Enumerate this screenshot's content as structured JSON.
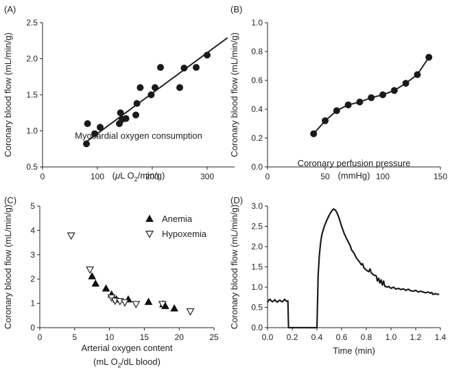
{
  "chart_data": [
    {
      "panel": "(A)",
      "type": "scatter",
      "xlabel": "Myocardial oxygen consumption",
      "xlabel_line2": {
        "pre": "(",
        "mu": "μ",
        "mid": "L O",
        "sub": "2",
        "post": "/min/g)"
      },
      "ylabel": "Coronary blood flow (mL/min/g)",
      "xlim": [
        0,
        350
      ],
      "ylim": [
        0.5,
        2.5
      ],
      "xticks": [
        "0",
        "100",
        "200",
        "300"
      ],
      "yticks": [
        "0.5",
        "1.0",
        "1.5",
        "2.0",
        "2.5"
      ],
      "points": [
        {
          "x": 80,
          "y": 0.82
        },
        {
          "x": 82,
          "y": 1.1
        },
        {
          "x": 95,
          "y": 0.96
        },
        {
          "x": 105,
          "y": 1.05
        },
        {
          "x": 140,
          "y": 1.1
        },
        {
          "x": 142,
          "y": 1.25
        },
        {
          "x": 145,
          "y": 1.16
        },
        {
          "x": 152,
          "y": 1.17
        },
        {
          "x": 170,
          "y": 1.22
        },
        {
          "x": 172,
          "y": 1.38
        },
        {
          "x": 178,
          "y": 1.6
        },
        {
          "x": 198,
          "y": 1.5
        },
        {
          "x": 205,
          "y": 1.6
        },
        {
          "x": 215,
          "y": 1.88
        },
        {
          "x": 250,
          "y": 1.6
        },
        {
          "x": 258,
          "y": 1.87
        },
        {
          "x": 280,
          "y": 1.88
        },
        {
          "x": 300,
          "y": 2.05
        }
      ],
      "fit_line": [
        {
          "x": 80,
          "y": 0.85
        },
        {
          "x": 337,
          "y": 2.29
        }
      ]
    },
    {
      "panel": "(B)",
      "type": "line",
      "xlabel": "Coronary perfusion pressure",
      "xlabel_line2": "(mmHg)",
      "ylabel": "Coronary blood flow (mL/min/g)",
      "xlim": [
        0,
        150
      ],
      "ylim": [
        0,
        1.0
      ],
      "xticks": [
        "0",
        "50",
        "100",
        "150"
      ],
      "yticks": [
        "0.0",
        "0.2",
        "0.4",
        "0.6",
        "0.8",
        "1.0"
      ],
      "points": [
        {
          "x": 40,
          "y": 0.23
        },
        {
          "x": 50,
          "y": 0.32
        },
        {
          "x": 60,
          "y": 0.39
        },
        {
          "x": 70,
          "y": 0.43
        },
        {
          "x": 80,
          "y": 0.45
        },
        {
          "x": 90,
          "y": 0.48
        },
        {
          "x": 100,
          "y": 0.5
        },
        {
          "x": 110,
          "y": 0.53
        },
        {
          "x": 120,
          "y": 0.58
        },
        {
          "x": 130,
          "y": 0.64
        },
        {
          "x": 140,
          "y": 0.76
        }
      ]
    },
    {
      "panel": "(C)",
      "type": "scatter",
      "xlabel": "Arterial oxygen content",
      "xlabel_line2": {
        "pre": "(mL O",
        "sub": "2",
        "post": "/dL blood)"
      },
      "ylabel": "Coronary blood flow (mL/min/g)",
      "xlim": [
        0,
        25
      ],
      "ylim": [
        0,
        5
      ],
      "xticks": [
        "0",
        "5",
        "10",
        "15",
        "20",
        "25"
      ],
      "yticks": [
        "0",
        "1",
        "2",
        "3",
        "4",
        "5"
      ],
      "legend": {
        "position": "top-right",
        "entries": [
          "Anemia",
          "Hypoxemia"
        ]
      },
      "series": [
        {
          "name": "Anemia",
          "marker": "filled-triangle",
          "points": [
            {
              "x": 7.5,
              "y": 2.1
            },
            {
              "x": 8,
              "y": 1.8
            },
            {
              "x": 9.5,
              "y": 1.6
            },
            {
              "x": 10.3,
              "y": 1.35
            },
            {
              "x": 11,
              "y": 1.15
            },
            {
              "x": 12.7,
              "y": 1.15
            },
            {
              "x": 15.6,
              "y": 1.05
            },
            {
              "x": 17.7,
              "y": 0.95
            },
            {
              "x": 18,
              "y": 0.88
            },
            {
              "x": 19.3,
              "y": 0.78
            }
          ]
        },
        {
          "name": "Hypoxemia",
          "marker": "open-triangle-down",
          "points": [
            {
              "x": 4.5,
              "y": 3.8
            },
            {
              "x": 7.2,
              "y": 2.4
            },
            {
              "x": 10.3,
              "y": 1.25
            },
            {
              "x": 10.8,
              "y": 1.12
            },
            {
              "x": 11.5,
              "y": 1.1
            },
            {
              "x": 12.2,
              "y": 1.05
            },
            {
              "x": 13.8,
              "y": 0.98
            },
            {
              "x": 17.6,
              "y": 0.98
            },
            {
              "x": 21.6,
              "y": 0.68
            }
          ]
        }
      ]
    },
    {
      "panel": "(D)",
      "type": "line",
      "xlabel": "Time (min)",
      "ylabel": "Coronary blood flow (mL/min/g)",
      "xlim": [
        0,
        1.4
      ],
      "ylim": [
        0,
        3.0
      ],
      "xticks": [
        "0.0",
        "0.2",
        "0.4",
        "0.6",
        "0.8",
        "1.0",
        "1.2",
        "1.4"
      ],
      "yticks": [
        "0.0",
        "0.5",
        "1.0",
        "1.5",
        "2.0",
        "2.5",
        "3.0"
      ],
      "trace": [
        {
          "x": 0.0,
          "y": 0.62
        },
        {
          "x": 0.01,
          "y": 0.68
        },
        {
          "x": 0.02,
          "y": 0.7
        },
        {
          "x": 0.03,
          "y": 0.66
        },
        {
          "x": 0.04,
          "y": 0.64
        },
        {
          "x": 0.05,
          "y": 0.66
        },
        {
          "x": 0.06,
          "y": 0.69
        },
        {
          "x": 0.07,
          "y": 0.65
        },
        {
          "x": 0.08,
          "y": 0.63
        },
        {
          "x": 0.09,
          "y": 0.66
        },
        {
          "x": 0.1,
          "y": 0.68
        },
        {
          "x": 0.11,
          "y": 0.65
        },
        {
          "x": 0.12,
          "y": 0.64
        },
        {
          "x": 0.13,
          "y": 0.67
        },
        {
          "x": 0.14,
          "y": 0.7
        },
        {
          "x": 0.15,
          "y": 0.66
        },
        {
          "x": 0.16,
          "y": 0.65
        },
        {
          "x": 0.165,
          "y": 0.66
        },
        {
          "x": 0.17,
          "y": 0.0
        },
        {
          "x": 0.25,
          "y": 0.0
        },
        {
          "x": 0.35,
          "y": 0.0
        },
        {
          "x": 0.4,
          "y": 0.0
        },
        {
          "x": 0.405,
          "y": 0.6
        },
        {
          "x": 0.41,
          "y": 1.3
        },
        {
          "x": 0.42,
          "y": 1.8
        },
        {
          "x": 0.43,
          "y": 2.1
        },
        {
          "x": 0.44,
          "y": 2.3
        },
        {
          "x": 0.46,
          "y": 2.5
        },
        {
          "x": 0.48,
          "y": 2.65
        },
        {
          "x": 0.5,
          "y": 2.78
        },
        {
          "x": 0.52,
          "y": 2.88
        },
        {
          "x": 0.535,
          "y": 2.93
        },
        {
          "x": 0.55,
          "y": 2.9
        },
        {
          "x": 0.56,
          "y": 2.85
        },
        {
          "x": 0.57,
          "y": 2.78
        },
        {
          "x": 0.58,
          "y": 2.7
        },
        {
          "x": 0.59,
          "y": 2.6
        },
        {
          "x": 0.6,
          "y": 2.5
        },
        {
          "x": 0.62,
          "y": 2.33
        },
        {
          "x": 0.64,
          "y": 2.2
        },
        {
          "x": 0.66,
          "y": 2.08
        },
        {
          "x": 0.67,
          "y": 2.02
        },
        {
          "x": 0.68,
          "y": 1.92
        },
        {
          "x": 0.7,
          "y": 1.84
        },
        {
          "x": 0.72,
          "y": 1.72
        },
        {
          "x": 0.73,
          "y": 1.68
        },
        {
          "x": 0.75,
          "y": 1.6
        },
        {
          "x": 0.76,
          "y": 1.55
        },
        {
          "x": 0.77,
          "y": 1.58
        },
        {
          "x": 0.78,
          "y": 1.48
        },
        {
          "x": 0.8,
          "y": 1.42
        },
        {
          "x": 0.82,
          "y": 1.38
        },
        {
          "x": 0.83,
          "y": 1.45
        },
        {
          "x": 0.84,
          "y": 1.35
        },
        {
          "x": 0.86,
          "y": 1.3
        },
        {
          "x": 0.88,
          "y": 1.28
        },
        {
          "x": 0.89,
          "y": 1.15
        },
        {
          "x": 0.9,
          "y": 1.22
        },
        {
          "x": 0.91,
          "y": 1.1
        },
        {
          "x": 0.92,
          "y": 1.18
        },
        {
          "x": 0.93,
          "y": 1.05
        },
        {
          "x": 0.94,
          "y": 1.15
        },
        {
          "x": 0.95,
          "y": 1.02
        },
        {
          "x": 0.97,
          "y": 1.0
        },
        {
          "x": 0.98,
          "y": 1.02
        },
        {
          "x": 1.0,
          "y": 0.97
        },
        {
          "x": 1.02,
          "y": 1.0
        },
        {
          "x": 1.04,
          "y": 0.95
        },
        {
          "x": 1.06,
          "y": 0.97
        },
        {
          "x": 1.08,
          "y": 0.94
        },
        {
          "x": 1.1,
          "y": 0.96
        },
        {
          "x": 1.12,
          "y": 0.92
        },
        {
          "x": 1.14,
          "y": 0.95
        },
        {
          "x": 1.16,
          "y": 0.91
        },
        {
          "x": 1.18,
          "y": 0.9
        },
        {
          "x": 1.2,
          "y": 0.92
        },
        {
          "x": 1.22,
          "y": 0.88
        },
        {
          "x": 1.24,
          "y": 0.9
        },
        {
          "x": 1.26,
          "y": 0.88
        },
        {
          "x": 1.28,
          "y": 0.86
        },
        {
          "x": 1.3,
          "y": 0.88
        },
        {
          "x": 1.32,
          "y": 0.85
        },
        {
          "x": 1.33,
          "y": 0.87
        },
        {
          "x": 1.34,
          "y": 0.82
        },
        {
          "x": 1.36,
          "y": 0.84
        },
        {
          "x": 1.38,
          "y": 0.82
        },
        {
          "x": 1.39,
          "y": 0.83
        }
      ]
    }
  ]
}
